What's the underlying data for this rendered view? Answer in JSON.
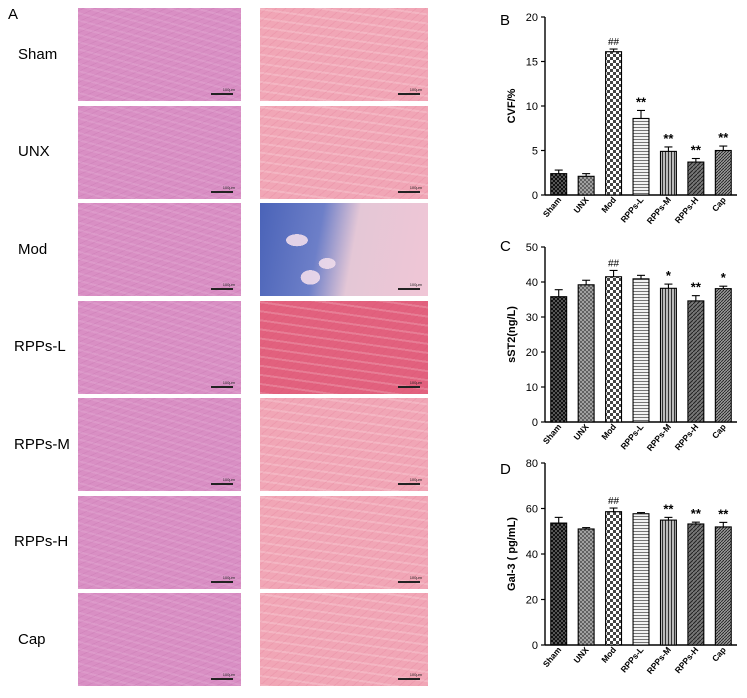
{
  "panel_a": {
    "letter": "A",
    "rows": [
      "Sham",
      "UNX",
      "Mod",
      "RPPs-L",
      "RPPs-M",
      "RPPs-H",
      "Cap"
    ],
    "scale_labels": [
      "100μm",
      "100μm",
      "100μm",
      "100μm",
      "100μm",
      "100μm",
      "100μm"
    ],
    "colors": {
      "he": "#d98fc4",
      "masson": "#f1a6b6",
      "fibrosis_blue": "#4a63b8"
    }
  },
  "chart_data": [
    {
      "letter": "B",
      "type": "bar",
      "categories": [
        "Sham",
        "UNX",
        "Mod",
        "RPPs-L",
        "RPPs-M",
        "RPPs-H",
        "Cap"
      ],
      "values": [
        2.4,
        2.1,
        16.1,
        8.6,
        4.9,
        3.7,
        5.0
      ],
      "errors": [
        0.4,
        0.3,
        0.3,
        0.9,
        0.5,
        0.4,
        0.5
      ],
      "marks": [
        "",
        "",
        "##",
        "**",
        "**",
        "**",
        "**"
      ],
      "ylabel": "CVF/%",
      "ylim": [
        0,
        20
      ],
      "yticks": [
        0,
        5,
        10,
        15,
        20
      ]
    },
    {
      "letter": "C",
      "type": "bar",
      "categories": [
        "Sham",
        "UNX",
        "Mod",
        "RPPs-L",
        "RPPs-M",
        "RPPs-H",
        "Cap"
      ],
      "values": [
        35.8,
        39.2,
        41.5,
        40.9,
        38.2,
        34.6,
        38.1
      ],
      "errors": [
        2.0,
        1.3,
        1.8,
        1.0,
        1.2,
        1.5,
        0.7
      ],
      "marks": [
        "",
        "",
        "##",
        "",
        "*",
        "**",
        "*"
      ],
      "ylabel": "sST2(ng/L)",
      "ylim": [
        0,
        50
      ],
      "yticks": [
        0,
        10,
        20,
        30,
        40,
        50
      ]
    },
    {
      "letter": "D",
      "type": "bar",
      "categories": [
        "Sham",
        "UNX",
        "Mod",
        "RPPs-L",
        "RPPs-M",
        "RPPs-H",
        "Cap"
      ],
      "values": [
        53.6,
        51.0,
        58.6,
        57.7,
        54.9,
        53.2,
        51.9
      ],
      "errors": [
        2.5,
        0.6,
        1.6,
        0.5,
        1.2,
        0.8,
        2.0
      ],
      "marks": [
        "",
        "",
        "##",
        "",
        "**",
        "**",
        "**"
      ],
      "ylabel": "Gal-3 ( pg/mL)",
      "ylim": [
        0,
        80
      ],
      "yticks": [
        0,
        20,
        40,
        60,
        80
      ]
    }
  ],
  "bar_styles": [
    "dots",
    "crosshatch",
    "checker",
    "hlines",
    "vlines",
    "diagonal",
    "dense-diagonal"
  ]
}
